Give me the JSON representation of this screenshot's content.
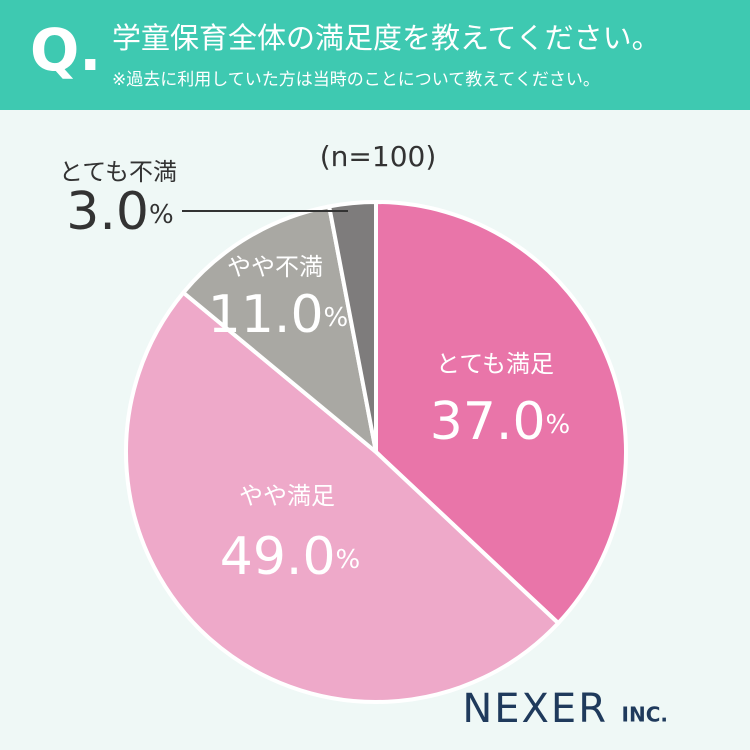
{
  "header": {
    "mark": "Q."
  },
  "chart_data": {
    "type": "pie",
    "title": "学童保育全体の満足度を教えてください。",
    "subtitle": "※過去に利用していた方は当時のことについて教えてください。",
    "note": "(n=100)",
    "categories": [
      "とても満足",
      "やや満足",
      "やや不満",
      "とても不満"
    ],
    "values": [
      37,
      49,
      11,
      3
    ],
    "value_labels": [
      "37.0%",
      "49.0%",
      "11.0%",
      "3.0%"
    ],
    "colors": [
      "#e975a9",
      "#eea9c9",
      "#a9a8a3",
      "#7e7c7c"
    ]
  },
  "logo": {
    "name": "NEXER",
    "suffix": "INC."
  }
}
